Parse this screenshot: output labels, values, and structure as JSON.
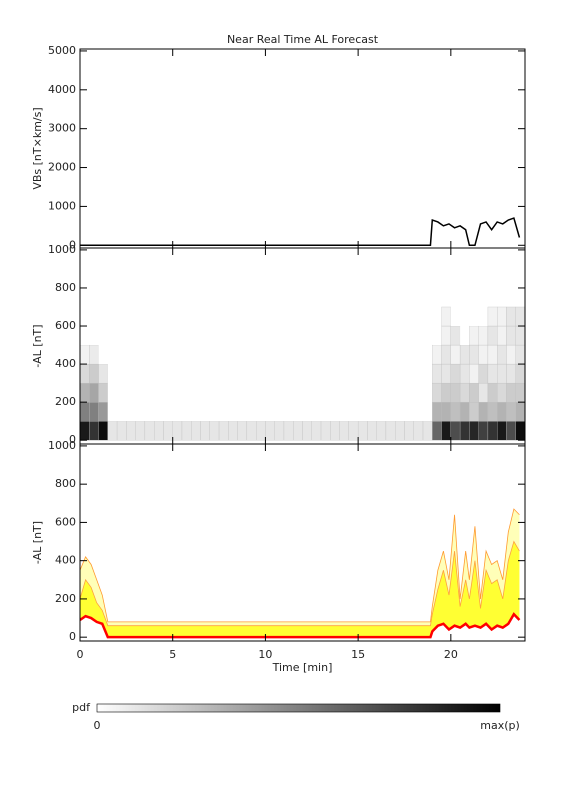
{
  "chart_data": [
    {
      "type": "line",
      "title": "Near Real Time AL Forecast",
      "ylabel": "VBs [nT×km/s]",
      "x": [
        0,
        0.3,
        0.6,
        0.9,
        1.2,
        1.5,
        1.6,
        18.9,
        19.0,
        19.3,
        19.6,
        19.9,
        20.2,
        20.5,
        20.8,
        21.0,
        21.3,
        21.6,
        21.9,
        22.2,
        22.5,
        22.8,
        23.1,
        23.4,
        23.7
      ],
      "values": [
        0,
        0,
        0,
        0,
        0,
        0,
        0,
        0,
        650,
        600,
        500,
        550,
        450,
        500,
        400,
        0,
        0,
        550,
        600,
        400,
        600,
        550,
        650,
        700,
        200
      ],
      "color": "#000000",
      "xlim": [
        0,
        24
      ],
      "xticks": [
        0,
        5,
        10,
        15,
        20
      ],
      "xtick_labels": false,
      "ylim": [
        -70,
        5050
      ],
      "yticks": [
        0,
        1000,
        2000,
        3000,
        4000,
        5000
      ]
    },
    {
      "type": "heatmap",
      "ylabel": "-AL [nT]",
      "xbins": [
        0,
        0.5,
        1,
        1.5,
        2,
        2.5,
        3,
        3.5,
        4,
        4.5,
        5,
        5.5,
        6,
        6.5,
        7,
        7.5,
        8,
        8.5,
        9,
        9.5,
        10,
        10.5,
        11,
        11.5,
        12,
        12.5,
        13,
        13.5,
        14,
        14.5,
        15,
        15.5,
        16,
        16.5,
        17,
        17.5,
        18,
        18.5,
        19,
        19.5,
        20,
        20.5,
        21,
        21.5,
        22,
        22.5,
        23,
        23.5,
        24
      ],
      "ybins": [
        0,
        100,
        200,
        300,
        400,
        500,
        600,
        700
      ],
      "z": [
        [
          0.9,
          0.5,
          0.3,
          0.15,
          0.05,
          0,
          0
        ],
        [
          0.8,
          0.5,
          0.35,
          0.2,
          0.08,
          0,
          0
        ],
        [
          0.95,
          0.4,
          0.2,
          0.1,
          0,
          0,
          0
        ],
        [
          0.1,
          0,
          0,
          0,
          0,
          0,
          0
        ],
        [
          0.1,
          0,
          0,
          0,
          0,
          0,
          0
        ],
        [
          0.1,
          0,
          0,
          0,
          0,
          0,
          0
        ],
        [
          0.1,
          0,
          0,
          0,
          0,
          0,
          0
        ],
        [
          0.1,
          0,
          0,
          0,
          0,
          0,
          0
        ],
        [
          0.1,
          0,
          0,
          0,
          0,
          0,
          0
        ],
        [
          0.1,
          0,
          0,
          0,
          0,
          0,
          0
        ],
        [
          0.1,
          0,
          0,
          0,
          0,
          0,
          0
        ],
        [
          0.1,
          0,
          0,
          0,
          0,
          0,
          0
        ],
        [
          0.1,
          0,
          0,
          0,
          0,
          0,
          0
        ],
        [
          0.1,
          0,
          0,
          0,
          0,
          0,
          0
        ],
        [
          0.1,
          0,
          0,
          0,
          0,
          0,
          0
        ],
        [
          0.1,
          0,
          0,
          0,
          0,
          0,
          0
        ],
        [
          0.1,
          0,
          0,
          0,
          0,
          0,
          0
        ],
        [
          0.1,
          0,
          0,
          0,
          0,
          0,
          0
        ],
        [
          0.1,
          0,
          0,
          0,
          0,
          0,
          0
        ],
        [
          0.1,
          0,
          0,
          0,
          0,
          0,
          0
        ],
        [
          0.1,
          0,
          0,
          0,
          0,
          0,
          0
        ],
        [
          0.1,
          0,
          0,
          0,
          0,
          0,
          0
        ],
        [
          0.1,
          0,
          0,
          0,
          0,
          0,
          0
        ],
        [
          0.1,
          0,
          0,
          0,
          0,
          0,
          0
        ],
        [
          0.1,
          0,
          0,
          0,
          0,
          0,
          0
        ],
        [
          0.1,
          0,
          0,
          0,
          0,
          0,
          0
        ],
        [
          0.1,
          0,
          0,
          0,
          0,
          0,
          0
        ],
        [
          0.1,
          0,
          0,
          0,
          0,
          0,
          0
        ],
        [
          0.1,
          0,
          0,
          0,
          0,
          0,
          0
        ],
        [
          0.1,
          0,
          0,
          0,
          0,
          0,
          0
        ],
        [
          0.1,
          0,
          0,
          0,
          0,
          0,
          0
        ],
        [
          0.1,
          0,
          0,
          0,
          0,
          0,
          0
        ],
        [
          0.1,
          0,
          0,
          0,
          0,
          0,
          0
        ],
        [
          0.1,
          0,
          0,
          0,
          0,
          0,
          0
        ],
        [
          0.1,
          0,
          0,
          0,
          0,
          0,
          0
        ],
        [
          0.1,
          0,
          0,
          0,
          0,
          0,
          0
        ],
        [
          0.1,
          0,
          0,
          0,
          0,
          0,
          0
        ],
        [
          0.1,
          0,
          0,
          0,
          0,
          0,
          0
        ],
        [
          0.6,
          0.3,
          0.15,
          0.1,
          0.05,
          0,
          0
        ],
        [
          0.9,
          0.3,
          0.2,
          0.1,
          0.1,
          0.05,
          0.05
        ],
        [
          0.7,
          0.25,
          0.2,
          0.15,
          0.05,
          0.1,
          0
        ],
        [
          0.8,
          0.3,
          0.15,
          0.1,
          0.1,
          0,
          0
        ],
        [
          0.85,
          0.2,
          0.2,
          0.05,
          0.1,
          0.05,
          0
        ],
        [
          0.75,
          0.3,
          0.1,
          0.15,
          0.05,
          0.05,
          0
        ],
        [
          0.8,
          0.25,
          0.2,
          0.1,
          0.05,
          0.1,
          0.05
        ],
        [
          0.9,
          0.3,
          0.15,
          0.1,
          0.1,
          0.05,
          0.05
        ],
        [
          0.7,
          0.25,
          0.2,
          0.1,
          0.05,
          0.1,
          0.1
        ],
        [
          0.95,
          0.3,
          0.2,
          0.15,
          0.1,
          0.1,
          0.1
        ]
      ],
      "xlim": [
        0,
        24
      ],
      "xticks": [
        0,
        5,
        10,
        15,
        20
      ],
      "xtick_labels": false,
      "ylim": [
        -20,
        1010
      ],
      "yticks": [
        0,
        200,
        400,
        600,
        800,
        1000
      ]
    },
    {
      "type": "band",
      "ylabel": "-AL [nT]",
      "xlabel": "Time [min]",
      "x": [
        0,
        0.3,
        0.6,
        0.9,
        1.2,
        1.5,
        1.6,
        18.9,
        19.0,
        19.3,
        19.6,
        19.9,
        20.2,
        20.5,
        20.8,
        21.0,
        21.3,
        21.6,
        21.9,
        22.2,
        22.5,
        22.8,
        23.1,
        23.4,
        23.7
      ],
      "series": [
        {
          "color": "#ff0000",
          "values": [
            90,
            110,
            100,
            80,
            70,
            0,
            0,
            0,
            30,
            60,
            70,
            40,
            60,
            50,
            70,
            50,
            60,
            50,
            70,
            40,
            60,
            50,
            70,
            120,
            90
          ]
        },
        {
          "color": "#ffa040",
          "fill": "#ffff33",
          "values": [
            200,
            300,
            260,
            180,
            140,
            60,
            60,
            60,
            120,
            250,
            350,
            220,
            450,
            160,
            300,
            200,
            400,
            150,
            350,
            280,
            300,
            200,
            400,
            500,
            450
          ]
        },
        {
          "color": "#ff9a30",
          "fill": "#ffffb8",
          "values": [
            350,
            420,
            380,
            300,
            220,
            80,
            80,
            80,
            160,
            350,
            450,
            300,
            640,
            200,
            450,
            300,
            580,
            200,
            450,
            380,
            400,
            300,
            550,
            670,
            640
          ]
        }
      ],
      "xlim": [
        0,
        24
      ],
      "xticks": [
        0,
        5,
        10,
        15,
        20
      ],
      "xtick_labels": true,
      "ylim": [
        -20,
        1010
      ],
      "yticks": [
        0,
        200,
        400,
        600,
        800,
        1000
      ]
    }
  ],
  "colorbar": {
    "label": "pdf",
    "min_label": 0,
    "max_label": "max(p)"
  }
}
